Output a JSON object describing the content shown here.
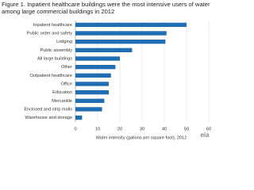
{
  "chart_data": {
    "type": "barh",
    "title": "Figure 1.  Inpatient healthcare buildings were the most intensive users of water among large commercial buildings in 2012",
    "categories": [
      "Inpatient healthcare",
      "Public order and safety",
      "Lodging",
      "Public assembly",
      "All large buildings",
      "Other",
      "Outpatient healthcare",
      "Office",
      "Education",
      "Mercantile",
      "Enclosed and strip malls",
      "Warehouse and storage"
    ],
    "values": [
      50,
      41,
      40.5,
      25.5,
      20,
      18,
      16,
      15,
      15,
      13,
      12,
      3
    ],
    "color": "#1f6db3",
    "xlabel": "Water intensity (gallons per square foot), 2012",
    "xlim": [
      0,
      60
    ],
    "xticks": [
      0,
      10,
      20,
      30,
      40,
      50,
      60
    ],
    "grid": true,
    "logo": "eia"
  }
}
